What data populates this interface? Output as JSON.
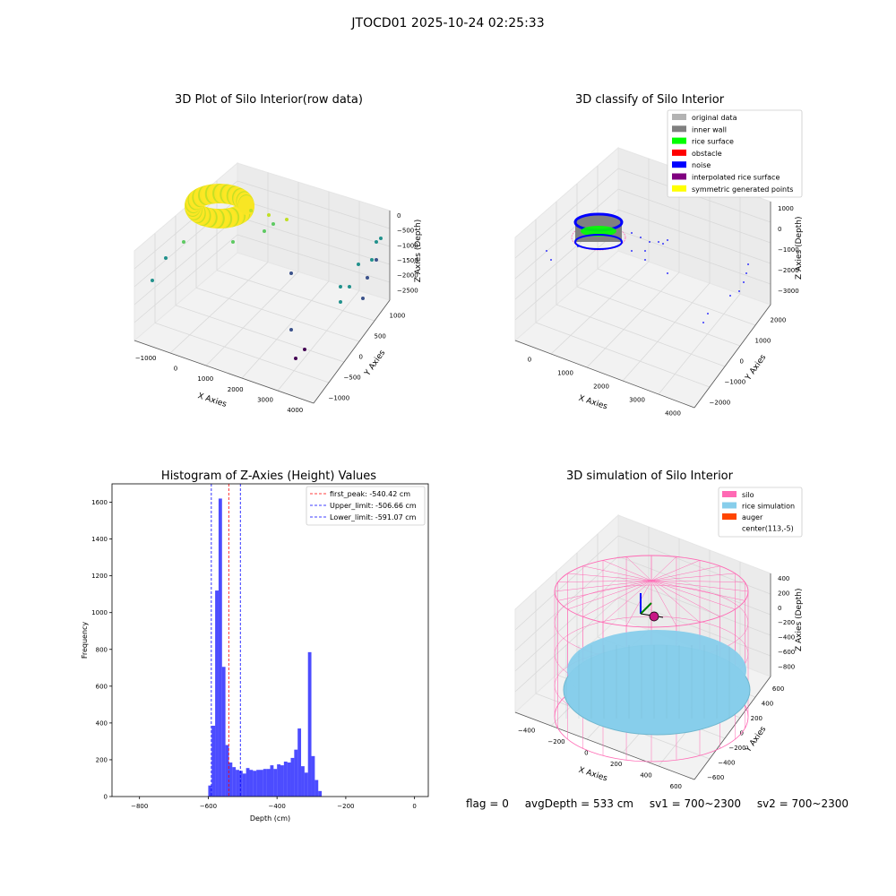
{
  "suptitle": "JTOCD01 2025-10-24 02:25:33",
  "footer": {
    "flag": "flag = 0",
    "avg_depth": "avgDepth = 533 cm",
    "sv1": "sv1 = 700~2300",
    "sv2": "sv2 = 700~2300"
  },
  "chart_data": [
    {
      "type": "scatter",
      "title": "3D Plot of Silo Interior(row data)",
      "xlabel": "X Axies",
      "ylabel": "Y Axies",
      "zlabel": "Z Axies (Depth)",
      "x_ticks": [
        "−1000",
        "0",
        "1000",
        "2000",
        "3000",
        "4000"
      ],
      "y_ticks": [
        "−1000",
        "−500",
        "0",
        "500",
        "1000"
      ],
      "z_ticks": [
        "0",
        "−500",
        "−1000",
        "−1500",
        "−2000",
        "−2500"
      ],
      "colors": [
        "#fde725",
        "#c0df25",
        "#5ec962",
        "#21918c",
        "#3b528b",
        "#440154"
      ]
    },
    {
      "type": "scatter",
      "title": "3D classify of Silo Interior",
      "xlabel": "X Axies",
      "ylabel": "Y Axies",
      "zlabel": "Z Axies (Depth)",
      "x_ticks": [
        "0",
        "1000",
        "2000",
        "3000",
        "4000"
      ],
      "y_ticks": [
        "−2000",
        "−1000",
        "0",
        "1000",
        "2000"
      ],
      "z_ticks": [
        "1000",
        "0",
        "−1000",
        "−2000",
        "−3000"
      ],
      "legend_position": "top-right",
      "legend": [
        {
          "label": "original data",
          "color": "#b3b3b3"
        },
        {
          "label": "inner wall",
          "color": "#808080"
        },
        {
          "label": "rice surface",
          "color": "#00ff00"
        },
        {
          "label": "obstacle",
          "color": "#ff0000"
        },
        {
          "label": "noise",
          "color": "#0000ff"
        },
        {
          "label": "interpolated rice surface",
          "color": "#800080"
        },
        {
          "label": "symmetric generated points",
          "color": "#ffff00"
        }
      ]
    },
    {
      "type": "bar",
      "title": "Histogram of Z-Axies (Height) Values",
      "xlabel": "Depth (cm)",
      "ylabel": "Frequency",
      "xlim": [
        -880,
        40
      ],
      "ylim": [
        0,
        1700
      ],
      "x_ticks": [
        -800,
        -600,
        -400,
        -200,
        0
      ],
      "y_ticks": [
        0,
        200,
        400,
        600,
        800,
        1000,
        1200,
        1400,
        1600
      ],
      "bin_start": -600,
      "bin_width": 10,
      "bar_color": "#0000ff",
      "values": [
        60,
        385,
        1120,
        1620,
        705,
        280,
        185,
        160,
        145,
        140,
        125,
        155,
        145,
        140,
        145,
        145,
        150,
        150,
        170,
        150,
        175,
        170,
        190,
        185,
        210,
        255,
        370,
        165,
        130,
        785,
        220,
        90,
        30
      ],
      "vlines": [
        {
          "label": "first_peak: -540.42 cm",
          "x": -540.42,
          "color": "#ff0000"
        },
        {
          "label": "Upper_limit: -506.66 cm",
          "x": -506.66,
          "color": "#0000ff"
        },
        {
          "label": "Lower_limit: -591.07 cm",
          "x": -591.07,
          "color": "#0000ff"
        }
      ],
      "legend_position": "top-right"
    },
    {
      "type": "scatter",
      "title": "3D simulation of Silo Interior",
      "xlabel": "X Axies",
      "ylabel": "Y Axies",
      "zlabel": "Z Axies (Depth)",
      "x_ticks": [
        "−400",
        "−200",
        "0",
        "200",
        "400",
        "600"
      ],
      "y_ticks": [
        "−600",
        "−400",
        "−200",
        "0",
        "200",
        "400",
        "600"
      ],
      "z_ticks": [
        "400",
        "200",
        "0",
        "−200",
        "−400",
        "−600",
        "−800"
      ],
      "legend_position": "top-right",
      "legend": [
        {
          "label": "silo",
          "color": "#ff69b4"
        },
        {
          "label": "rice simulation",
          "color": "#87ceeb"
        },
        {
          "label": "auger",
          "color": "#ff4500"
        },
        {
          "label": "center(113,-5)",
          "color": "#ffffff"
        }
      ]
    }
  ]
}
